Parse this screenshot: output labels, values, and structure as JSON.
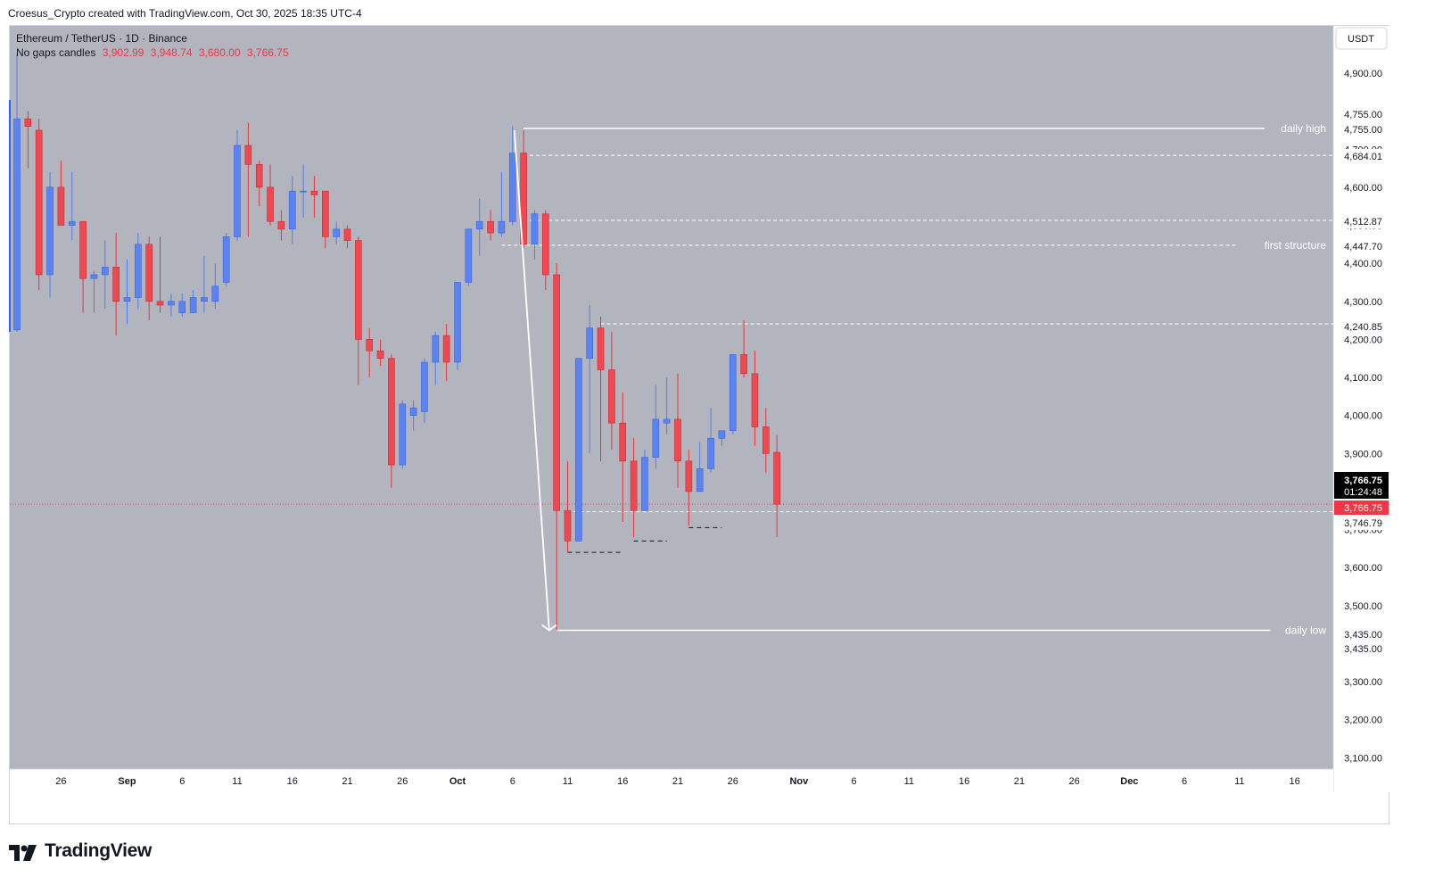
{
  "header": {
    "credit": "Croesus_Crypto created with TradingView.com, Oct 30, 2025 18:35 UTC-4"
  },
  "legend": {
    "symbol": "Ethereum / TetherUS · 1D · Binance",
    "style": "No gaps candles",
    "ohlc": [
      "3,902.99",
      "3,948.74",
      "3,680.00",
      "3,766.75"
    ]
  },
  "currency_button": "USDT",
  "footer": {
    "brand": "TradingView"
  },
  "colors": {
    "up": "#4f7df0",
    "down": "#e8333b",
    "background": "#b2b5be",
    "level": "#ffffff"
  },
  "chart_data": {
    "type": "candlestick",
    "symbol": "ETHUSDT",
    "interval": "1D",
    "ylim": [
      3050,
      5000
    ],
    "y_ticks": [
      "4,900.00",
      "4,800.00",
      "4,700.00",
      "4,600.00",
      "4,500.00",
      "4,400.00",
      "4,300.00",
      "4,200.00",
      "4,100.00",
      "4,000.00",
      "3,900.00",
      "3,800.00",
      "3,700.00",
      "3,600.00",
      "3,500.00",
      "3,400.00",
      "3,300.00",
      "3,200.00",
      "3,100.00"
    ],
    "x_ticks": [
      "26",
      "Sep",
      "6",
      "11",
      "16",
      "21",
      "26",
      "Oct",
      "6",
      "11",
      "16",
      "21",
      "26",
      "Nov",
      "6",
      "11",
      "16",
      "21",
      "26",
      "Dec",
      "6",
      "11",
      "16"
    ],
    "dates": [
      "2025-08-22",
      "2025-08-23",
      "2025-08-24",
      "2025-08-25",
      "2025-08-26",
      "2025-08-27",
      "2025-08-28",
      "2025-08-29",
      "2025-08-30",
      "2025-08-31",
      "2025-09-01",
      "2025-09-02",
      "2025-09-03",
      "2025-09-04",
      "2025-09-05",
      "2025-09-06",
      "2025-09-07",
      "2025-09-08",
      "2025-09-09",
      "2025-09-10",
      "2025-09-11",
      "2025-09-12",
      "2025-09-13",
      "2025-09-14",
      "2025-09-15",
      "2025-09-16",
      "2025-09-17",
      "2025-09-18",
      "2025-09-19",
      "2025-09-20",
      "2025-09-21",
      "2025-09-22",
      "2025-09-23",
      "2025-09-24",
      "2025-09-25",
      "2025-09-26",
      "2025-09-27",
      "2025-09-28",
      "2025-09-29",
      "2025-09-30",
      "2025-10-01",
      "2025-10-02",
      "2025-10-03",
      "2025-10-04",
      "2025-10-05",
      "2025-10-06",
      "2025-10-07",
      "2025-10-08",
      "2025-10-09",
      "2025-10-10",
      "2025-10-11",
      "2025-10-12",
      "2025-10-13",
      "2025-10-14",
      "2025-10-15",
      "2025-10-16",
      "2025-10-17",
      "2025-10-18",
      "2025-10-19",
      "2025-10-20",
      "2025-10-21",
      "2025-10-22",
      "2025-10-23",
      "2025-10-24",
      "2025-10-25",
      "2025-10-26",
      "2025-10-27",
      "2025-10-28",
      "2025-10-29",
      "2025-10-30"
    ],
    "ohlc": [
      [
        4225,
        4950,
        4220,
        4780
      ],
      [
        4780,
        4800,
        4650,
        4760
      ],
      [
        4750,
        4780,
        4330,
        4370
      ],
      [
        4370,
        4640,
        4310,
        4600
      ],
      [
        4600,
        4670,
        4500,
        4500
      ],
      [
        4500,
        4640,
        4460,
        4510
      ],
      [
        4510,
        4510,
        4270,
        4360
      ],
      [
        4360,
        4380,
        4270,
        4370
      ],
      [
        4370,
        4460,
        4280,
        4390
      ],
      [
        4390,
        4480,
        4210,
        4300
      ],
      [
        4300,
        4410,
        4240,
        4310
      ],
      [
        4310,
        4480,
        4280,
        4450
      ],
      [
        4450,
        4470,
        4250,
        4300
      ],
      [
        4300,
        4470,
        4270,
        4290
      ],
      [
        4290,
        4320,
        4260,
        4300
      ],
      [
        4270,
        4320,
        4260,
        4300
      ],
      [
        4270,
        4330,
        4270,
        4310
      ],
      [
        4300,
        4420,
        4270,
        4310
      ],
      [
        4300,
        4400,
        4280,
        4340
      ],
      [
        4350,
        4480,
        4340,
        4470
      ],
      [
        4470,
        4750,
        4460,
        4710
      ],
      [
        4710,
        4770,
        4470,
        4660
      ],
      [
        4660,
        4670,
        4550,
        4600
      ],
      [
        4600,
        4660,
        4500,
        4510
      ],
      [
        4510,
        4540,
        4460,
        4490
      ],
      [
        4490,
        4630,
        4450,
        4590
      ],
      [
        4590,
        4660,
        4520,
        4590
      ],
      [
        4590,
        4630,
        4520,
        4580
      ],
      [
        4590,
        4590,
        4440,
        4470
      ],
      [
        4470,
        4510,
        4450,
        4490
      ],
      [
        4490,
        4500,
        4440,
        4460
      ],
      [
        4460,
        4470,
        4080,
        4200
      ],
      [
        4200,
        4230,
        4100,
        4170
      ],
      [
        4170,
        4200,
        4130,
        4150
      ],
      [
        4150,
        4160,
        3810,
        3870
      ],
      [
        3870,
        4040,
        3860,
        4030
      ],
      [
        4000,
        4040,
        3960,
        4020
      ],
      [
        4010,
        4150,
        3980,
        4140
      ],
      [
        4140,
        4220,
        4080,
        4210
      ],
      [
        4210,
        4240,
        4090,
        4140
      ],
      [
        4140,
        4340,
        4120,
        4350
      ],
      [
        4350,
        4480,
        4340,
        4490
      ],
      [
        4490,
        4570,
        4420,
        4510
      ],
      [
        4510,
        4540,
        4460,
        4480
      ],
      [
        4480,
        4640,
        4470,
        4510
      ],
      [
        4510,
        4760,
        4500,
        4690
      ],
      [
        4690,
        4750,
        4440,
        4450
      ],
      [
        4450,
        4540,
        4410,
        4530
      ],
      [
        4530,
        4540,
        4330,
        4370
      ],
      [
        4370,
        4400,
        3435,
        3750
      ],
      [
        3750,
        3880,
        3640,
        3670
      ],
      [
        3670,
        4150,
        3680,
        4150
      ],
      [
        4150,
        4290,
        3900,
        4230
      ],
      [
        4230,
        4260,
        3880,
        4120
      ],
      [
        4120,
        4220,
        3910,
        3980
      ],
      [
        3980,
        4060,
        3720,
        3880
      ],
      [
        3880,
        3940,
        3680,
        3750
      ],
      [
        3750,
        3910,
        3750,
        3890
      ],
      [
        3890,
        4080,
        3860,
        3990
      ],
      [
        3980,
        4100,
        3950,
        3990
      ],
      [
        3990,
        4110,
        3810,
        3880
      ],
      [
        3880,
        3910,
        3710,
        3800
      ],
      [
        3800,
        3930,
        3810,
        3860
      ],
      [
        3860,
        4020,
        3850,
        3940
      ],
      [
        3940,
        3960,
        3920,
        3960
      ],
      [
        3960,
        4160,
        3950,
        4160
      ],
      [
        4160,
        4250,
        4100,
        4110
      ],
      [
        4110,
        4170,
        3920,
        3970
      ],
      [
        3970,
        4020,
        3850,
        3900
      ],
      [
        3902.99,
        3948.74,
        3680,
        3766.75
      ]
    ],
    "horizontal_levels": [
      {
        "price": 4755.0,
        "label": "daily high",
        "style": "solid"
      },
      {
        "price": 4684.01,
        "style": "dashed"
      },
      {
        "price": 4512.87,
        "style": "dashed"
      },
      {
        "price": 4447.7,
        "label": "first structure",
        "style": "dashed"
      },
      {
        "price": 4240.85,
        "style": "dashed"
      },
      {
        "price": 3746.79,
        "style": "dashed"
      },
      {
        "price": 3435.0,
        "label": "daily low",
        "style": "solid"
      }
    ],
    "short_dashed_levels": [
      3640,
      3670,
      3705
    ],
    "price_labels": [
      {
        "text": "4,755.00",
        "kind": "white"
      },
      {
        "text": "4,755.00",
        "kind": "white"
      },
      {
        "text": "4,684.01",
        "kind": "white"
      },
      {
        "text": "4,512.87",
        "kind": "white"
      },
      {
        "text": "4,447.70",
        "kind": "white"
      },
      {
        "text": "4,240.85",
        "kind": "white"
      },
      {
        "text": "3,766.75",
        "sub": "01:24:48",
        "kind": "black"
      },
      {
        "text": "3,766.75",
        "kind": "red"
      },
      {
        "text": "3,746.79",
        "kind": "white"
      },
      {
        "text": "3,435.00",
        "kind": "white"
      },
      {
        "text": "3,435.00",
        "kind": "white"
      }
    ],
    "current_price": 3766.75,
    "countdown": "01:24:48"
  }
}
